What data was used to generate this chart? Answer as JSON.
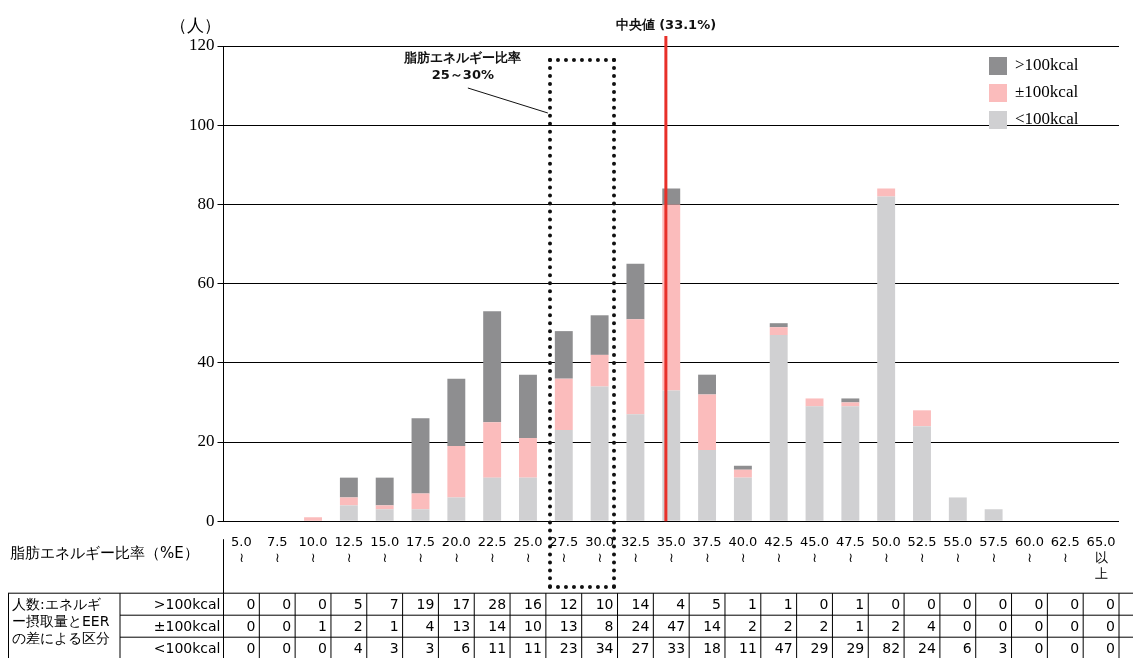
{
  "chart_data": {
    "type": "bar",
    "stacked": true,
    "ylabel": "（人）",
    "xlabel": "脂肪エネルギー比率（%E）",
    "categories": [
      "5.0\n≀",
      "7.5\n≀",
      "10.0\n≀",
      "12.5\n≀",
      "15.0\n≀",
      "17.5\n≀",
      "20.0\n≀",
      "22.5\n≀",
      "25.0\n≀",
      "27.5\n≀",
      "30.0\n≀",
      "32.5\n≀",
      "35.0\n≀",
      "37.5\n≀",
      "40.0\n≀",
      "42.5\n≀",
      "45.0\n≀",
      "47.5\n≀",
      "50.0\n≀",
      "52.5\n≀",
      "55.0\n≀",
      "57.5\n≀",
      "60.0\n≀",
      "62.5\n≀",
      "65.0\n以上"
    ],
    "series": [
      {
        "name": "<100kcal",
        "color": "#d0d0d2",
        "values": [
          0,
          0,
          0,
          4,
          3,
          3,
          6,
          11,
          11,
          23,
          34,
          27,
          33,
          18,
          11,
          47,
          29,
          29,
          82,
          24,
          6,
          3,
          0,
          0,
          0
        ]
      },
      {
        "name": "±100kcal",
        "color": "#fbbcbc",
        "values": [
          0,
          0,
          1,
          2,
          1,
          4,
          13,
          14,
          10,
          13,
          8,
          24,
          47,
          14,
          2,
          2,
          2,
          1,
          2,
          4,
          0,
          0,
          0,
          0,
          0
        ]
      },
      {
        "name": ">100kcal",
        "color": "#8e8e90",
        "values": [
          0,
          0,
          0,
          5,
          7,
          19,
          17,
          28,
          16,
          12,
          10,
          14,
          4,
          5,
          1,
          1,
          0,
          1,
          0,
          0,
          0,
          0,
          0,
          0,
          0
        ]
      }
    ],
    "ylim": [
      0,
      120
    ],
    "yticks": [
      0,
      20,
      40,
      60,
      80,
      100,
      120
    ],
    "grid": "y",
    "legend": "top right",
    "data_labels": true,
    "ref_lines": [
      {
        "axis": "x",
        "value": "35.0\n≀",
        "label": "中央値 (33.1%)",
        "color": "#e8302a"
      }
    ],
    "annotations": [
      "脂肪エネルギー比率\n25～30%",
      "人数:エネルギー摂取量とEERの差による区分"
    ]
  }
}
